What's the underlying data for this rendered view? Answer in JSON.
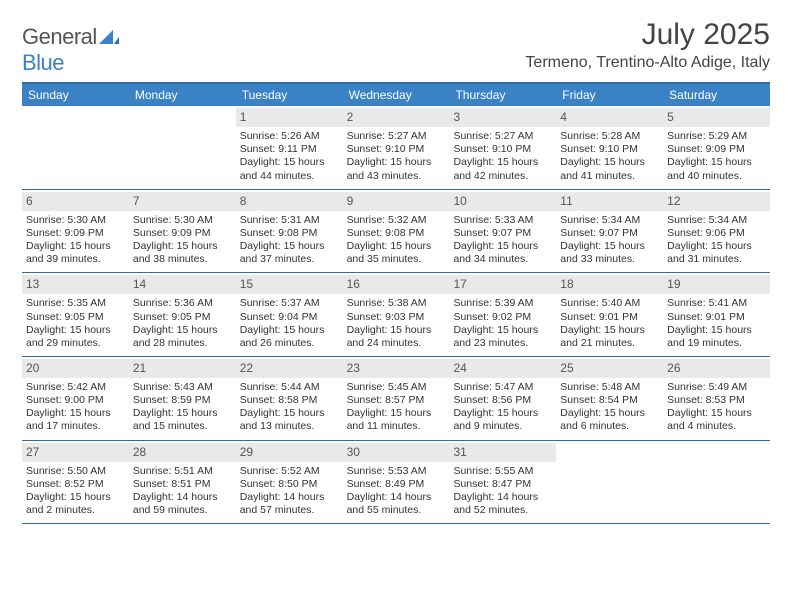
{
  "logo": {
    "text_gray": "General",
    "text_blue": "Blue"
  },
  "title": "July 2025",
  "location": "Termeno, Trentino-Alto Adige, Italy",
  "colors": {
    "header_bar": "#3b82c4",
    "rule": "#2e6da4",
    "daynum_bg": "#e9e9e9",
    "text": "#333333",
    "background": "#ffffff"
  },
  "day_names": [
    "Sunday",
    "Monday",
    "Tuesday",
    "Wednesday",
    "Thursday",
    "Friday",
    "Saturday"
  ],
  "weeks": [
    [
      {
        "empty": true
      },
      {
        "empty": true
      },
      {
        "day": "1",
        "sunrise": "Sunrise: 5:26 AM",
        "sunset": "Sunset: 9:11 PM",
        "daylight": "Daylight: 15 hours and 44 minutes."
      },
      {
        "day": "2",
        "sunrise": "Sunrise: 5:27 AM",
        "sunset": "Sunset: 9:10 PM",
        "daylight": "Daylight: 15 hours and 43 minutes."
      },
      {
        "day": "3",
        "sunrise": "Sunrise: 5:27 AM",
        "sunset": "Sunset: 9:10 PM",
        "daylight": "Daylight: 15 hours and 42 minutes."
      },
      {
        "day": "4",
        "sunrise": "Sunrise: 5:28 AM",
        "sunset": "Sunset: 9:10 PM",
        "daylight": "Daylight: 15 hours and 41 minutes."
      },
      {
        "day": "5",
        "sunrise": "Sunrise: 5:29 AM",
        "sunset": "Sunset: 9:09 PM",
        "daylight": "Daylight: 15 hours and 40 minutes."
      }
    ],
    [
      {
        "day": "6",
        "sunrise": "Sunrise: 5:30 AM",
        "sunset": "Sunset: 9:09 PM",
        "daylight": "Daylight: 15 hours and 39 minutes."
      },
      {
        "day": "7",
        "sunrise": "Sunrise: 5:30 AM",
        "sunset": "Sunset: 9:09 PM",
        "daylight": "Daylight: 15 hours and 38 minutes."
      },
      {
        "day": "8",
        "sunrise": "Sunrise: 5:31 AM",
        "sunset": "Sunset: 9:08 PM",
        "daylight": "Daylight: 15 hours and 37 minutes."
      },
      {
        "day": "9",
        "sunrise": "Sunrise: 5:32 AM",
        "sunset": "Sunset: 9:08 PM",
        "daylight": "Daylight: 15 hours and 35 minutes."
      },
      {
        "day": "10",
        "sunrise": "Sunrise: 5:33 AM",
        "sunset": "Sunset: 9:07 PM",
        "daylight": "Daylight: 15 hours and 34 minutes."
      },
      {
        "day": "11",
        "sunrise": "Sunrise: 5:34 AM",
        "sunset": "Sunset: 9:07 PM",
        "daylight": "Daylight: 15 hours and 33 minutes."
      },
      {
        "day": "12",
        "sunrise": "Sunrise: 5:34 AM",
        "sunset": "Sunset: 9:06 PM",
        "daylight": "Daylight: 15 hours and 31 minutes."
      }
    ],
    [
      {
        "day": "13",
        "sunrise": "Sunrise: 5:35 AM",
        "sunset": "Sunset: 9:05 PM",
        "daylight": "Daylight: 15 hours and 29 minutes."
      },
      {
        "day": "14",
        "sunrise": "Sunrise: 5:36 AM",
        "sunset": "Sunset: 9:05 PM",
        "daylight": "Daylight: 15 hours and 28 minutes."
      },
      {
        "day": "15",
        "sunrise": "Sunrise: 5:37 AM",
        "sunset": "Sunset: 9:04 PM",
        "daylight": "Daylight: 15 hours and 26 minutes."
      },
      {
        "day": "16",
        "sunrise": "Sunrise: 5:38 AM",
        "sunset": "Sunset: 9:03 PM",
        "daylight": "Daylight: 15 hours and 24 minutes."
      },
      {
        "day": "17",
        "sunrise": "Sunrise: 5:39 AM",
        "sunset": "Sunset: 9:02 PM",
        "daylight": "Daylight: 15 hours and 23 minutes."
      },
      {
        "day": "18",
        "sunrise": "Sunrise: 5:40 AM",
        "sunset": "Sunset: 9:01 PM",
        "daylight": "Daylight: 15 hours and 21 minutes."
      },
      {
        "day": "19",
        "sunrise": "Sunrise: 5:41 AM",
        "sunset": "Sunset: 9:01 PM",
        "daylight": "Daylight: 15 hours and 19 minutes."
      }
    ],
    [
      {
        "day": "20",
        "sunrise": "Sunrise: 5:42 AM",
        "sunset": "Sunset: 9:00 PM",
        "daylight": "Daylight: 15 hours and 17 minutes."
      },
      {
        "day": "21",
        "sunrise": "Sunrise: 5:43 AM",
        "sunset": "Sunset: 8:59 PM",
        "daylight": "Daylight: 15 hours and 15 minutes."
      },
      {
        "day": "22",
        "sunrise": "Sunrise: 5:44 AM",
        "sunset": "Sunset: 8:58 PM",
        "daylight": "Daylight: 15 hours and 13 minutes."
      },
      {
        "day": "23",
        "sunrise": "Sunrise: 5:45 AM",
        "sunset": "Sunset: 8:57 PM",
        "daylight": "Daylight: 15 hours and 11 minutes."
      },
      {
        "day": "24",
        "sunrise": "Sunrise: 5:47 AM",
        "sunset": "Sunset: 8:56 PM",
        "daylight": "Daylight: 15 hours and 9 minutes."
      },
      {
        "day": "25",
        "sunrise": "Sunrise: 5:48 AM",
        "sunset": "Sunset: 8:54 PM",
        "daylight": "Daylight: 15 hours and 6 minutes."
      },
      {
        "day": "26",
        "sunrise": "Sunrise: 5:49 AM",
        "sunset": "Sunset: 8:53 PM",
        "daylight": "Daylight: 15 hours and 4 minutes."
      }
    ],
    [
      {
        "day": "27",
        "sunrise": "Sunrise: 5:50 AM",
        "sunset": "Sunset: 8:52 PM",
        "daylight": "Daylight: 15 hours and 2 minutes."
      },
      {
        "day": "28",
        "sunrise": "Sunrise: 5:51 AM",
        "sunset": "Sunset: 8:51 PM",
        "daylight": "Daylight: 14 hours and 59 minutes."
      },
      {
        "day": "29",
        "sunrise": "Sunrise: 5:52 AM",
        "sunset": "Sunset: 8:50 PM",
        "daylight": "Daylight: 14 hours and 57 minutes."
      },
      {
        "day": "30",
        "sunrise": "Sunrise: 5:53 AM",
        "sunset": "Sunset: 8:49 PM",
        "daylight": "Daylight: 14 hours and 55 minutes."
      },
      {
        "day": "31",
        "sunrise": "Sunrise: 5:55 AM",
        "sunset": "Sunset: 8:47 PM",
        "daylight": "Daylight: 14 hours and 52 minutes."
      },
      {
        "empty": true
      },
      {
        "empty": true
      }
    ]
  ]
}
